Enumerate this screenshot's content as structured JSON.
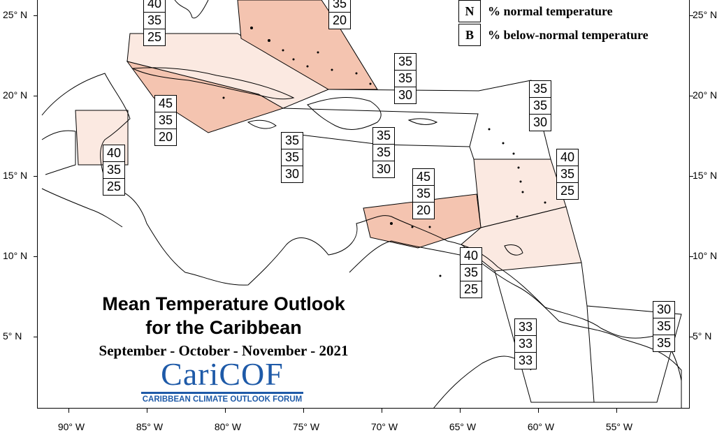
{
  "legend": {
    "items": [
      {
        "key": "N",
        "label": "% normal temperature"
      },
      {
        "key": "B",
        "label": "% below-normal temperature"
      }
    ]
  },
  "title": {
    "line1": "Mean Temperature Outlook",
    "line2": "for the Caribbean",
    "period": "September - October - November - 2021"
  },
  "logo": {
    "name": "CariCOF",
    "subtitle": "CARIBBEAN CLIMATE OUTLOOK FORUM",
    "color": "#1e5aa8"
  },
  "axes": {
    "latitude_labels": [
      "25° N",
      "20° N",
      "15° N",
      "10° N",
      "5° N"
    ],
    "longitude_labels": [
      "90° W",
      "85° W",
      "80° W",
      "75° W",
      "70° W",
      "65° W",
      "60° W",
      "55° W"
    ]
  },
  "colors": {
    "light_fill": "#fbe9e1",
    "medium_fill": "#f4c4b0",
    "coast": "#000000"
  },
  "regions": [
    {
      "id": "bahamas-north",
      "values": [
        "40",
        "35",
        "25"
      ]
    },
    {
      "id": "bahamas-east",
      "values": [
        "35",
        "20"
      ]
    },
    {
      "id": "turks-caicos",
      "values": [
        "35",
        "35",
        "30"
      ]
    },
    {
      "id": "cuba-cayman",
      "values": [
        "45",
        "35",
        "20"
      ]
    },
    {
      "id": "northern-leewards",
      "values": [
        "35",
        "35",
        "30"
      ]
    },
    {
      "id": "belize-honduras",
      "values": [
        "40",
        "35",
        "25"
      ]
    },
    {
      "id": "jamaica-sea",
      "values": [
        "35",
        "35",
        "30"
      ]
    },
    {
      "id": "hispaniola-puerto-rico",
      "values": [
        "35",
        "35",
        "30"
      ]
    },
    {
      "id": "eastern-caribbean",
      "values": [
        "40",
        "35",
        "25"
      ]
    },
    {
      "id": "abc-islands",
      "values": [
        "45",
        "35",
        "20"
      ]
    },
    {
      "id": "trinidad",
      "values": [
        "40",
        "35",
        "25"
      ]
    },
    {
      "id": "french-guiana",
      "values": [
        "30",
        "35",
        "35"
      ]
    },
    {
      "id": "guyana",
      "values": [
        "33",
        "33",
        "33"
      ]
    }
  ]
}
